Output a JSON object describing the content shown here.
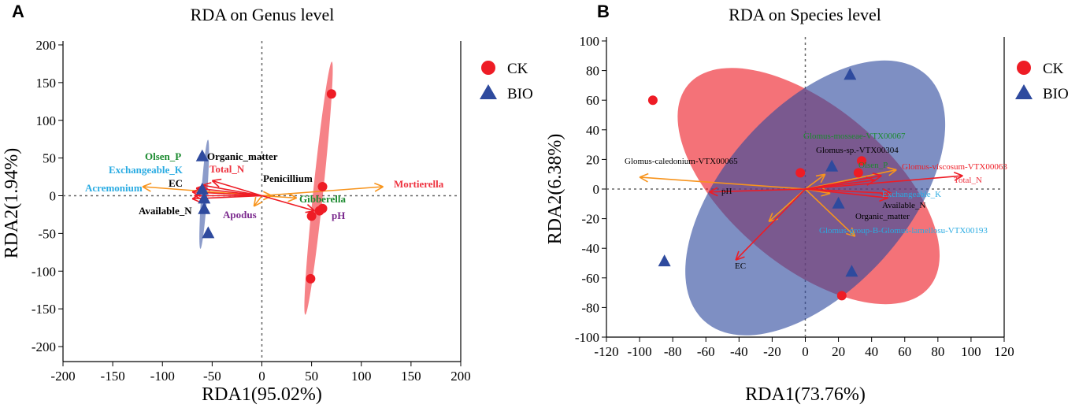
{
  "chart_data": [
    {
      "type": "scatter",
      "panel_label": "A",
      "title": "RDA on Genus level",
      "xlabel": "RDA1(95.02%)",
      "ylabel": "RDA2(1.94%)",
      "xlim": [
        -200,
        200
      ],
      "ylim": [
        -220,
        200
      ],
      "xticks": [
        -200,
        -150,
        -100,
        -50,
        0,
        50,
        100,
        150,
        200
      ],
      "yticks": [
        -200,
        -150,
        -100,
        -50,
        0,
        50,
        100,
        150,
        200
      ],
      "legend": {
        "placement": "right",
        "entries": [
          {
            "name": "CK",
            "color": "#ee1c25",
            "marker": "circle"
          },
          {
            "name": "BIO",
            "color": "#2e4a9e",
            "marker": "triangle"
          }
        ]
      },
      "groups": [
        {
          "name": "CK",
          "color": "#ee1c25",
          "points": [
            [
              70,
              135
            ],
            [
              61,
              12
            ],
            [
              50,
              -27
            ],
            [
              58,
              -20
            ],
            [
              61,
              -17
            ],
            [
              49,
              -110
            ]
          ],
          "ellipse": {
            "cx": 57,
            "cy": 10,
            "rx": 128,
            "ry": 5,
            "angle": -84
          }
        },
        {
          "name": "BIO",
          "color": "#2e4a9e",
          "points": [
            [
              -60,
              52
            ],
            [
              -60,
              8
            ],
            [
              -58,
              -4
            ],
            [
              -58,
              -18
            ],
            [
              -54,
              -50
            ]
          ],
          "ellipse": {
            "cx": -58,
            "cy": 2,
            "rx": 55,
            "ry": 3,
            "angle": -86
          }
        }
      ],
      "species_arrows": [
        {
          "label": "Acremonium",
          "x": -120,
          "y": 12,
          "label_color": "#29abe2"
        },
        {
          "label": "Mortierella",
          "x": 122,
          "y": 12,
          "label_color": "#ee3340"
        },
        {
          "label": "Penicillium",
          "x": 10,
          "y": 0,
          "label_color": "#000000"
        },
        {
          "label": "Apodus",
          "x": -8,
          "y": -14,
          "label_color": "#7b2a8e"
        },
        {
          "label": "Gibberella",
          "x": 35,
          "y": -3,
          "label_color": "#1a8a2e"
        }
      ],
      "env_arrows": [
        {
          "label": "EC",
          "x": -66,
          "y": 10,
          "label_color": "#000000"
        },
        {
          "label": "Olsen_P",
          "x": -70,
          "y": 5,
          "label_color": "#1a8a2e"
        },
        {
          "label": "Exchangeable_K",
          "x": -68,
          "y": 0,
          "label_color": "#29abe2"
        },
        {
          "label": "Organic_matter",
          "x": -60,
          "y": 14,
          "label_color": "#000000"
        },
        {
          "label": "Total_N",
          "x": -50,
          "y": 20,
          "label_color": "#ee3340"
        },
        {
          "label": "Available_N",
          "x": -70,
          "y": -4,
          "label_color": "#000000"
        },
        {
          "label": "pH",
          "x": 53,
          "y": -20,
          "label_color": "#7b2a8e"
        }
      ]
    },
    {
      "type": "scatter",
      "panel_label": "B",
      "title": "RDA on Species level",
      "xlabel": "RDA1(73.76%)",
      "ylabel": "RDA2(6.38%)",
      "xlim": [
        -120,
        120
      ],
      "ylim": [
        -100,
        100
      ],
      "xticks": [
        -120,
        -100,
        -80,
        -60,
        -40,
        -20,
        0,
        20,
        40,
        60,
        80,
        100,
        120
      ],
      "yticks": [
        -100,
        -80,
        -60,
        -40,
        -20,
        0,
        20,
        40,
        60,
        80,
        100
      ],
      "legend": {
        "placement": "right",
        "entries": [
          {
            "name": "CK",
            "color": "#ee1c25",
            "marker": "circle"
          },
          {
            "name": "BIO",
            "color": "#2e4a9e",
            "marker": "triangle"
          }
        ]
      },
      "groups": [
        {
          "name": "CK",
          "color": "#ee1c25",
          "points": [
            [
              -92,
              60
            ],
            [
              -3,
              11
            ],
            [
              34,
              19
            ],
            [
              32,
              11
            ],
            [
              22,
              -72
            ]
          ],
          "ellipse": {
            "cx": 2,
            "cy": 2,
            "rx": 95,
            "ry": 48,
            "angle": 40
          }
        },
        {
          "name": "BIO",
          "color": "#2e4a9e",
          "points": [
            [
              27,
              77
            ],
            [
              16,
              15
            ],
            [
              20,
              -10
            ],
            [
              28,
              -56
            ],
            [
              -85,
              -49
            ]
          ],
          "ellipse": {
            "cx": 6,
            "cy": -6,
            "rx": 100,
            "ry": 55,
            "angle": -48
          }
        }
      ],
      "species_arrows": [
        {
          "label": "Glomus-caledonium-VTX00065",
          "x": -100,
          "y": 8,
          "label_color": "#000000"
        },
        {
          "label": "Glomus-mosseae-VTX00067",
          "x": 12,
          "y": 10,
          "label_color": "#1a8a2e"
        },
        {
          "label": "Glomus-sp.-VTX00304",
          "x": 15,
          "y": -3,
          "label_color": "#000000"
        },
        {
          "label": "Glomus-group-B-Glomus-lamellosu-VTX00193",
          "x": 30,
          "y": -32,
          "label_color": "#29abe2"
        },
        {
          "label": "",
          "x": -22,
          "y": -22,
          "label_color": "#000000"
        },
        {
          "label": "Olsen_P",
          "x": 55,
          "y": 13,
          "label_color": "#1a8a2e"
        }
      ],
      "env_arrows": [
        {
          "label": "pH",
          "x": -58,
          "y": -2,
          "label_color": "#000000"
        },
        {
          "label": "EC",
          "x": -42,
          "y": -48,
          "label_color": "#000000"
        },
        {
          "label": "Total_N",
          "x": 95,
          "y": 9,
          "label_color": "#ee3340"
        },
        {
          "label": "Glomus-viscosum-VTX00063",
          "x": 46,
          "y": 9,
          "label_color": "#ee1c25"
        },
        {
          "label": "Exchangeable_K",
          "x": 52,
          "y": -3,
          "label_color": "#29abe2"
        },
        {
          "label": "Available_N",
          "x": 50,
          "y": -6,
          "label_color": "#000000"
        },
        {
          "label": "Organic_matter",
          "x": 42,
          "y": 6,
          "label_color": "#000000"
        }
      ]
    }
  ]
}
